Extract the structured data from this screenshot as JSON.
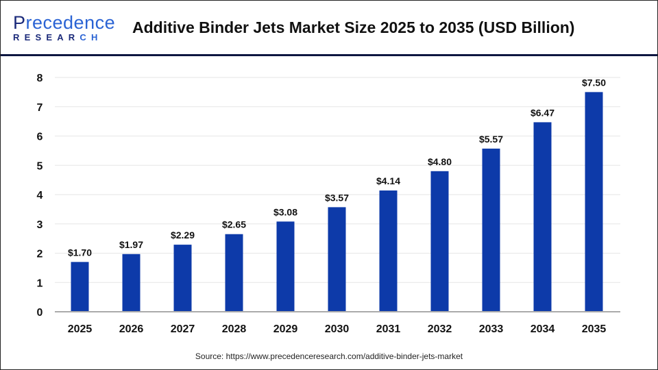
{
  "header": {
    "logo_text": "Precedence Research",
    "logo_line1": "Precedence",
    "logo_line2": "RESEARCH",
    "title": "Additive Binder Jets Market Size 2025 to 2035 (USD Billion)"
  },
  "source": "Source: https://www.precedenceresearch.com/additive-binder-jets-market",
  "colors": {
    "bar": "#0d3aa9",
    "header_rule": "#0d1640",
    "grid": "#e6e6e6",
    "axis": "#aaaaaa"
  },
  "chart_data": {
    "type": "bar",
    "title": "Additive Binder Jets Market Size 2025 to 2035 (USD Billion)",
    "categories": [
      "2025",
      "2026",
      "2027",
      "2028",
      "2029",
      "2030",
      "2031",
      "2032",
      "2033",
      "2034",
      "2035"
    ],
    "values": [
      1.7,
      1.97,
      2.29,
      2.65,
      3.08,
      3.57,
      4.14,
      4.8,
      5.57,
      6.47,
      7.5
    ],
    "data_labels": [
      "$1.70",
      "$1.97",
      "$2.29",
      "$2.65",
      "$3.08",
      "$3.57",
      "$4.14",
      "$4.80",
      "$5.57",
      "$6.47",
      "$7.50"
    ],
    "yticks": [
      "0",
      "1",
      "2",
      "3",
      "4",
      "5",
      "6",
      "7",
      "8"
    ],
    "ylim": [
      0,
      8
    ],
    "grid": true,
    "xlabel": "",
    "ylabel": ""
  }
}
